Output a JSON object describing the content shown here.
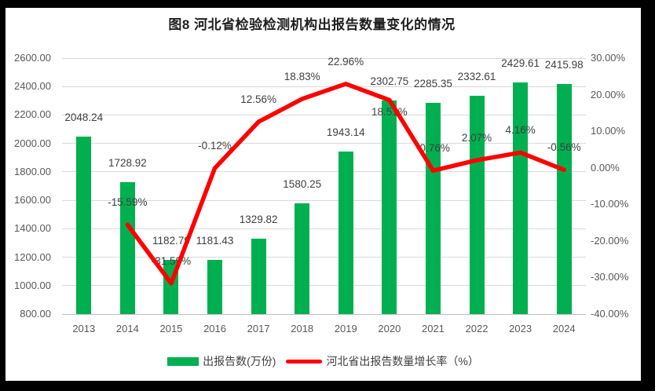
{
  "chart_data": {
    "type": "combo-bar-line",
    "title": "图8 河北省检验检测机构出报告数量变化的情况",
    "categories": [
      "2013",
      "2014",
      "2015",
      "2016",
      "2017",
      "2018",
      "2019",
      "2020",
      "2021",
      "2022",
      "2023",
      "2024"
    ],
    "series": [
      {
        "name": "出报告数(万份)",
        "type": "bar",
        "axis": "left",
        "color": "#00B050",
        "values": [
          2048.24,
          1728.92,
          1182.79,
          1181.43,
          1329.82,
          1580.25,
          1943.14,
          2302.75,
          2285.35,
          2332.61,
          2429.61,
          2415.98
        ],
        "labels": [
          "2048.24",
          "1728.92",
          "1182.79",
          "1181.43",
          "1329.82",
          "1580.25",
          "1943.14",
          "2302.75",
          "2285.35",
          "2332.61",
          "2429.61",
          "2415.98"
        ]
      },
      {
        "name": "河北省出报告数量增长率（%）",
        "type": "line",
        "axis": "right",
        "color": "#FF0000",
        "values": [
          null,
          -15.59,
          -31.59,
          -0.12,
          12.56,
          18.83,
          22.96,
          18.51,
          -0.76,
          2.07,
          4.16,
          -0.56
        ],
        "labels": [
          null,
          "-15.59%",
          "-31.59%",
          "-0.12%",
          "12.56%",
          "18.83%",
          "22.96%",
          "18.51%",
          "-0.76%",
          "2.07%",
          "4.16%",
          "-0.56%"
        ]
      }
    ],
    "left_axis": {
      "min": 800,
      "max": 2600,
      "step": 200,
      "tick_labels": [
        "2600.00",
        "2400.00",
        "2200.00",
        "2000.00",
        "1800.00",
        "1600.00",
        "1400.00",
        "1200.00",
        "1000.00",
        "800.00"
      ]
    },
    "right_axis": {
      "min": -40,
      "max": 30,
      "step": 10,
      "tick_labels": [
        "30.00%",
        "20.00%",
        "10.00%",
        "0.00%",
        "-10.00%",
        "-20.00%",
        "-30.00%",
        "-40.00%"
      ]
    },
    "grid": true,
    "legend_position": "bottom"
  },
  "colors": {
    "bar": "#00B050",
    "line": "#FF0000",
    "gridline": "#D9D9D9",
    "axis_line": "#BFBFBF",
    "tick_text": "#595959",
    "label_text": "#3F3F3F",
    "frame": "#000000",
    "background": "#FFFFFF"
  }
}
